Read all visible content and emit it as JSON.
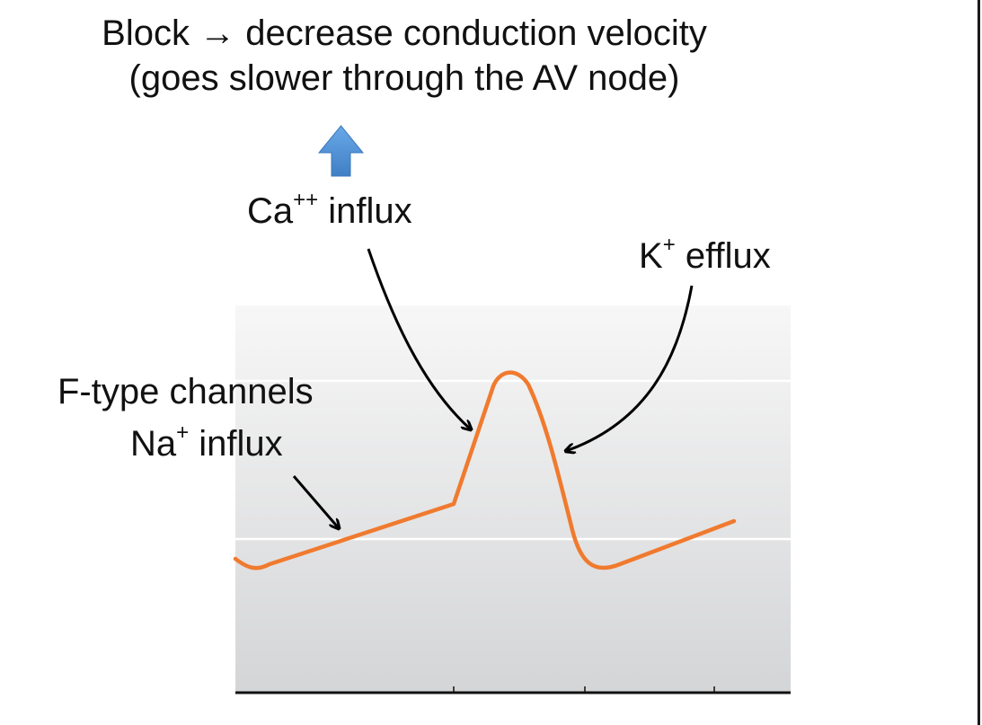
{
  "title": {
    "line1": "Block → decrease conduction velocity",
    "line2": "(goes slower through the AV node)"
  },
  "labels": {
    "ca": {
      "text": "Ca",
      "sup": "++",
      "rest": " influx"
    },
    "k": {
      "text": "K",
      "sup": "+",
      "rest": " efflux"
    },
    "f_type": "F-type channels",
    "na": {
      "text": "Na",
      "sup": "+",
      "rest": " influx"
    }
  },
  "colors": {
    "trace": "#f07a2e",
    "up_arrow": "#4a8fd6",
    "annotation_arrow": "#000000",
    "plot_bg_top": "#f7f7f7",
    "plot_bg_bottom": "#d4d5d7"
  },
  "icons": {
    "up_arrow": "blue-up-arrow-icon"
  }
}
